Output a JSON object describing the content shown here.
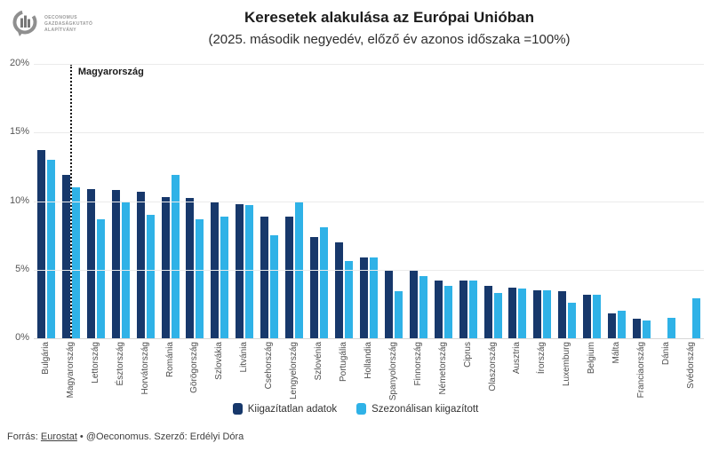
{
  "logo": {
    "line1": "OECONOMUS",
    "line2": "GAZDASÁGKUTATÓ",
    "line3": "ALAPÍTVÁNY"
  },
  "header": {
    "title": "Keresetek alakulása az Európai Unióban",
    "subtitle": "(2025. második negyedév, előző év azonos időszaka =100%)"
  },
  "chart_data": {
    "type": "bar",
    "title": "Keresetek alakulása az Európai Unióban",
    "subtitle": "(2025. második negyedév, előző év azonos időszaka =100%)",
    "categories": [
      "Bulgária",
      "Magyarország",
      "Lettország",
      "Észtország",
      "Horvátország",
      "Románia",
      "Görögország",
      "Szlovákia",
      "Litvánia",
      "Csehország",
      "Lengyelország",
      "Szlovénia",
      "Portugália",
      "Hollandia",
      "Spanyolország",
      "Finnország",
      "Németország",
      "Ciprus",
      "Olaszország",
      "Ausztria",
      "Írország",
      "Luxemburg",
      "Belgium",
      "Málta",
      "Franciaország",
      "Dánia",
      "Svédország"
    ],
    "series": [
      {
        "name": "Kiigazítatlan adatok",
        "color": "#17386B",
        "values": [
          13.7,
          11.9,
          10.9,
          10.8,
          10.7,
          10.3,
          10.2,
          10.0,
          9.8,
          8.9,
          8.9,
          7.4,
          7.0,
          5.9,
          5.0,
          4.9,
          4.2,
          4.2,
          3.8,
          3.7,
          3.5,
          3.4,
          3.2,
          1.8,
          1.4,
          null,
          null
        ]
      },
      {
        "name": "Szezonálisan kiigazított",
        "color": "#2FB2E7",
        "values": [
          13.0,
          11.0,
          8.7,
          10.0,
          9.0,
          11.9,
          8.7,
          8.9,
          9.7,
          7.5,
          9.9,
          8.1,
          5.6,
          5.9,
          3.4,
          4.5,
          3.8,
          4.2,
          3.3,
          3.6,
          3.5,
          2.6,
          3.2,
          2.0,
          1.3,
          1.5,
          2.9
        ]
      }
    ],
    "ylim": [
      0,
      20
    ],
    "yticks": [
      "0%",
      "5%",
      "10%",
      "15%",
      "20%"
    ],
    "grid": true,
    "legend_position": "bottom",
    "annotation": {
      "text": "Magyarország",
      "category_index": 1,
      "style": "dotted-vertical-line"
    }
  },
  "footer": {
    "source_prefix": "Forrás: ",
    "source_link": "Eurostat",
    "source_suffix": " • @Oeconomus. Szerző: Erdélyi Dóra"
  }
}
